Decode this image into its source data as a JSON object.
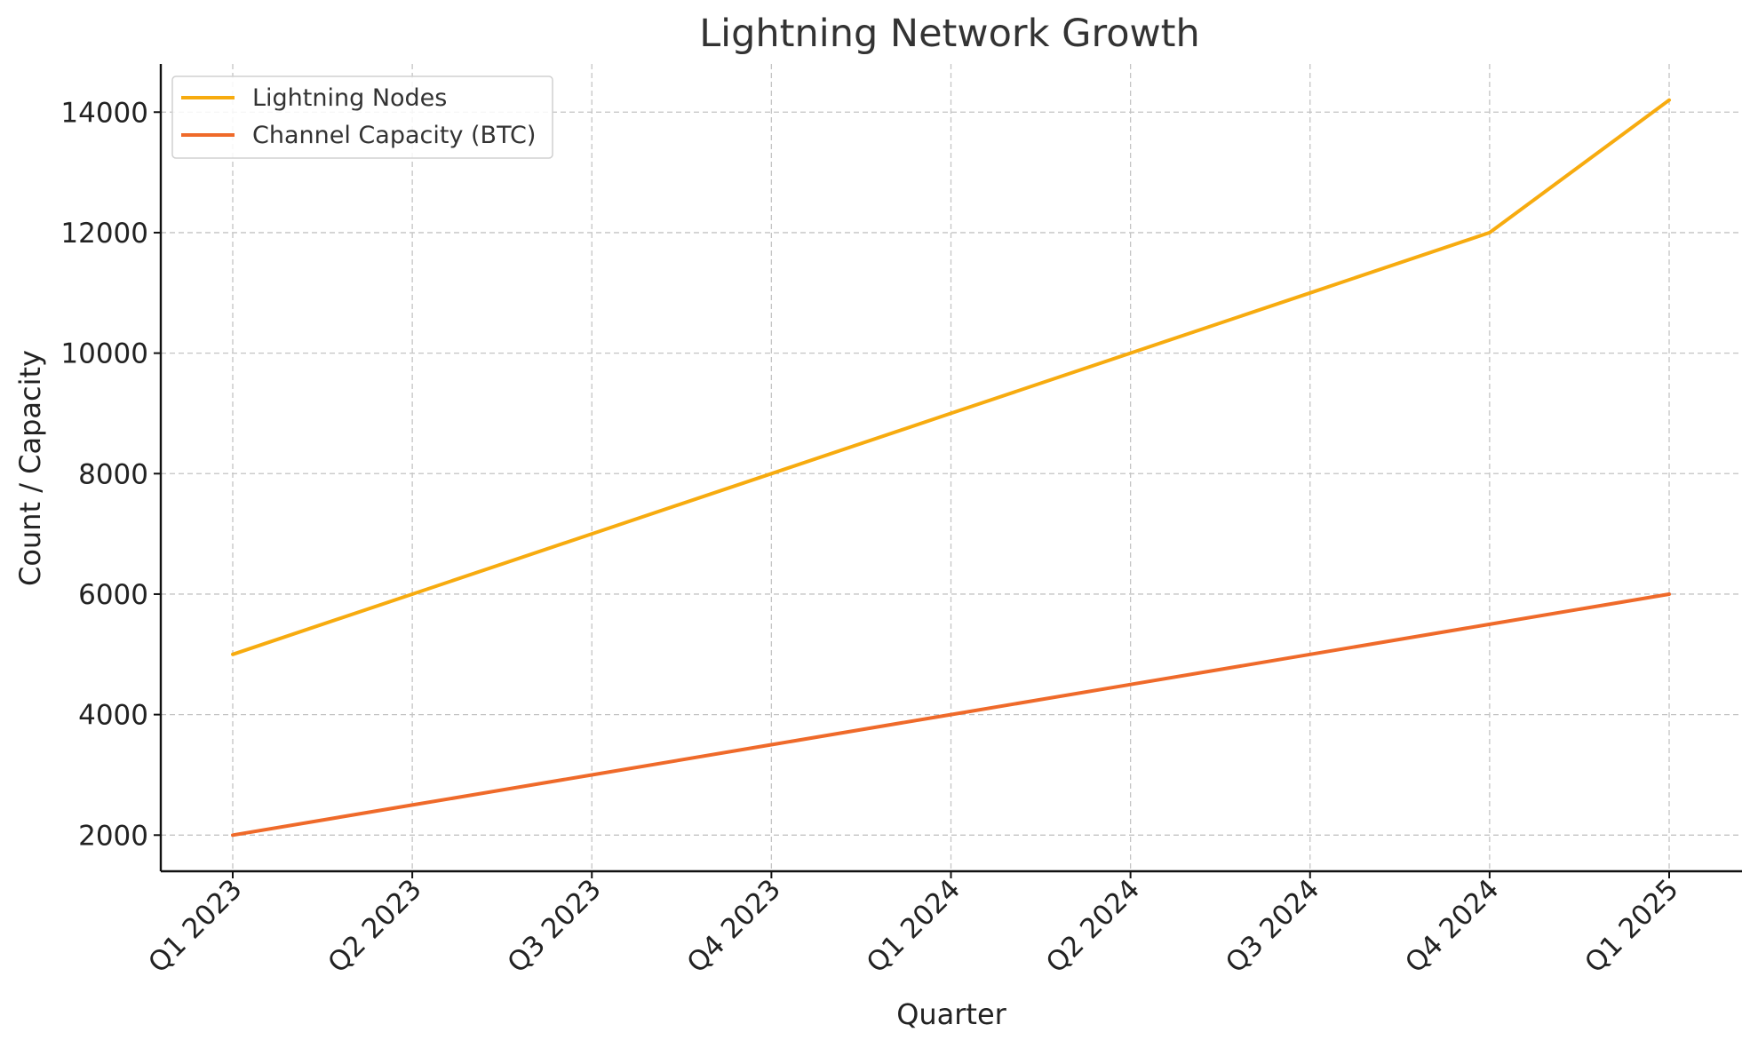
{
  "chart_data": {
    "type": "line",
    "title": "Lightning Network Growth",
    "xlabel": "Quarter",
    "ylabel": "Count / Capacity",
    "categories": [
      "Q1 2023",
      "Q2 2023",
      "Q3 2023",
      "Q4 2023",
      "Q1 2024",
      "Q2 2024",
      "Q3 2024",
      "Q4 2024",
      "Q1 2025"
    ],
    "series": [
      {
        "name": "Lightning Nodes",
        "color": "#f7ab0f",
        "values": [
          5000,
          6000,
          7000,
          8000,
          9000,
          10000,
          11000,
          12000,
          14200
        ]
      },
      {
        "name": "Channel Capacity (BTC)",
        "color": "#ef6a2a",
        "values": [
          2000,
          2500,
          3000,
          3500,
          4000,
          4500,
          5000,
          5500,
          6000
        ]
      }
    ],
    "yticks": [
      2000,
      4000,
      6000,
      8000,
      10000,
      12000,
      14000
    ],
    "ylim": [
      1400,
      14800
    ],
    "grid": true,
    "legend_position": "top-left"
  }
}
